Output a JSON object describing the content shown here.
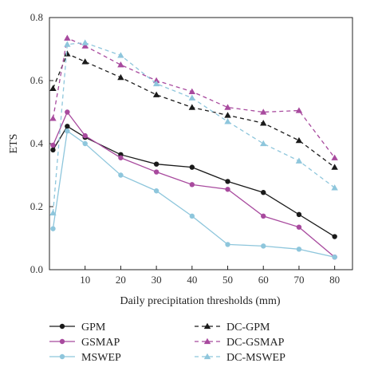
{
  "chart_data": {
    "type": "line",
    "title": "",
    "xlabel": "Daily precipitation thresholds (mm)",
    "ylabel": "ETS",
    "x": [
      1,
      5,
      10,
      20,
      30,
      40,
      50,
      60,
      70,
      80
    ],
    "xticks": [
      10,
      20,
      30,
      40,
      50,
      60,
      70,
      80
    ],
    "yticks": [
      "0.0",
      "0.2",
      "0.4",
      "0.6",
      "0.8"
    ],
    "xlim": [
      0,
      85
    ],
    "ylim": [
      0,
      0.8
    ],
    "grid": false,
    "legend_position": "bottom",
    "series": [
      {
        "name": "GPM",
        "color": "#1a1a1a",
        "dashed": false,
        "marker": "circle",
        "values": [
          0.38,
          0.455,
          0.42,
          0.365,
          0.335,
          0.325,
          0.28,
          0.245,
          0.175,
          0.105
        ]
      },
      {
        "name": "GSMAP",
        "color": "#a84a9e",
        "dashed": false,
        "marker": "circle",
        "values": [
          0.395,
          0.5,
          0.425,
          0.355,
          0.31,
          0.27,
          0.255,
          0.17,
          0.135,
          0.04
        ]
      },
      {
        "name": "MSWEP",
        "color": "#8ec6dc",
        "dashed": false,
        "marker": "circle",
        "values": [
          0.13,
          0.44,
          0.4,
          0.3,
          0.25,
          0.17,
          0.08,
          0.075,
          0.065,
          0.04
        ]
      },
      {
        "name": "DC-GPM",
        "color": "#1a1a1a",
        "dashed": true,
        "marker": "triangle",
        "values": [
          0.575,
          0.685,
          0.66,
          0.61,
          0.555,
          0.515,
          0.49,
          0.465,
          0.41,
          0.325
        ]
      },
      {
        "name": "DC-GSMAP",
        "color": "#a84a9e",
        "dashed": true,
        "marker": "triangle",
        "values": [
          0.48,
          0.735,
          0.71,
          0.65,
          0.6,
          0.565,
          0.515,
          0.5,
          0.505,
          0.355
        ]
      },
      {
        "name": "DC-MSWEP",
        "color": "#8ec6dc",
        "dashed": true,
        "marker": "triangle",
        "values": [
          0.18,
          0.715,
          0.72,
          0.68,
          0.59,
          0.545,
          0.47,
          0.4,
          0.345,
          0.26
        ]
      }
    ]
  }
}
